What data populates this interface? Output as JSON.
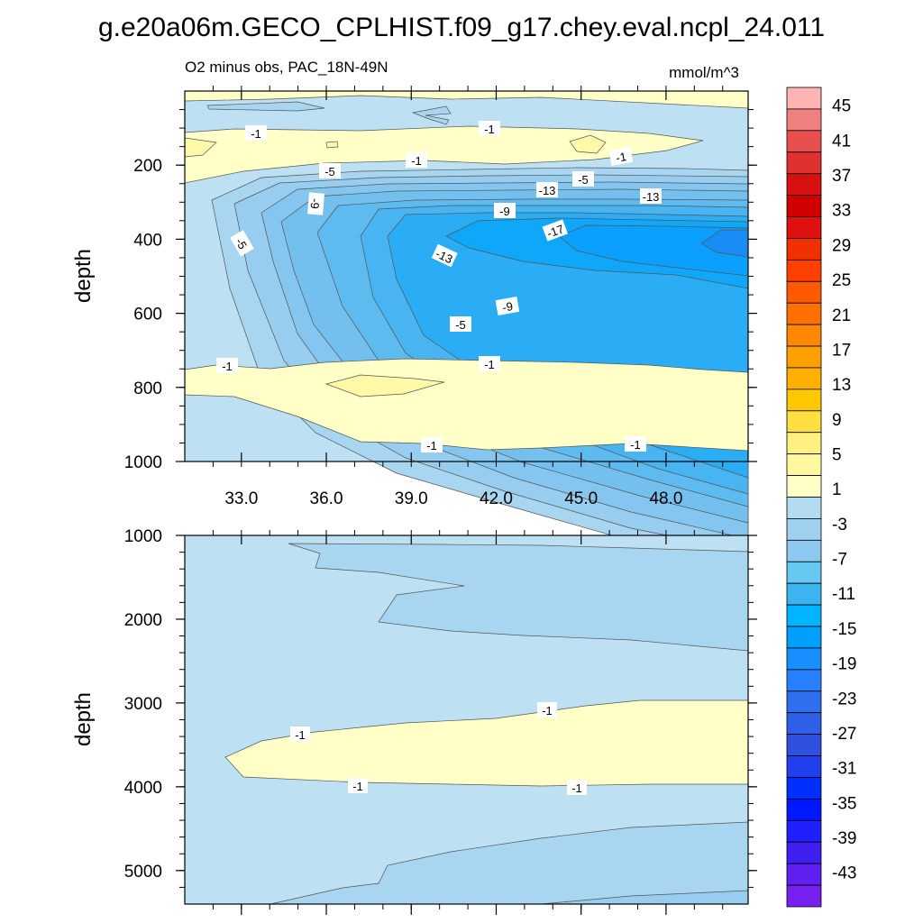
{
  "chart_data": [
    {
      "type": "contour",
      "panel": "upper",
      "title": "g.e20a06m.GECO_CPLHIST.f09_g17.chey.eval.ncpl_24.011",
      "subtitle_left": "O2 minus obs, PAC_18N-49N",
      "subtitle_right": "mmol/m^3",
      "xlabel": "",
      "ylabel": "depth",
      "xlim": [
        31.0,
        50.9
      ],
      "ylim": [
        1000,
        0
      ],
      "xticks": [
        "33.0",
        "36.0",
        "39.0",
        "42.0",
        "45.0",
        "48.0"
      ],
      "yticks": [
        "200",
        "400",
        "600",
        "800",
        "1000"
      ],
      "contour_labels": [
        "-1",
        "-1",
        "-1",
        "-1",
        "-5",
        "-5",
        "-9",
        "-13",
        "-9",
        "-13",
        "-5",
        "-13",
        "-17",
        "-9",
        "-5",
        "-1",
        "-1",
        "-1",
        "-1"
      ]
    },
    {
      "type": "contour",
      "panel": "lower",
      "xlabel": "",
      "ylabel": "depth",
      "xlim": [
        31.0,
        50.9
      ],
      "ylim": [
        5400,
        1000
      ],
      "yticks": [
        "1000",
        "2000",
        "3000",
        "4000",
        "5000"
      ],
      "contour_labels": [
        "-1",
        "-1",
        "-1",
        "-1"
      ]
    }
  ],
  "colorbar": {
    "labels": [
      "45",
      "41",
      "37",
      "33",
      "29",
      "25",
      "21",
      "17",
      "13",
      "9",
      "5",
      "1",
      "-3",
      "-7",
      "-11",
      "-15",
      "-19",
      "-23",
      "-27",
      "-31",
      "-35",
      "-39",
      "-43"
    ],
    "colors": [
      "#ffb4b4",
      "#f08080",
      "#e85050",
      "#e03030",
      "#d81010",
      "#d00000",
      "#e01010",
      "#f03000",
      "#ff4000",
      "#ff5a00",
      "#ff7000",
      "#ff8800",
      "#ffa000",
      "#ffb000",
      "#ffc800",
      "#ffe040",
      "#fff080",
      "#fff8a0",
      "#ffffc8",
      "#b4dcf0",
      "#a0d0f0",
      "#8cc8f0",
      "#64c8f0",
      "#3cb4f0",
      "#00b4ff",
      "#00a0ff",
      "#1890ff",
      "#2880ff",
      "#3070f0",
      "#3060e8",
      "#3050e0",
      "#2040f0",
      "#0030ff",
      "#0018ff",
      "#2020ff",
      "#4020f0",
      "#6020f0",
      "#7820f0"
    ]
  }
}
